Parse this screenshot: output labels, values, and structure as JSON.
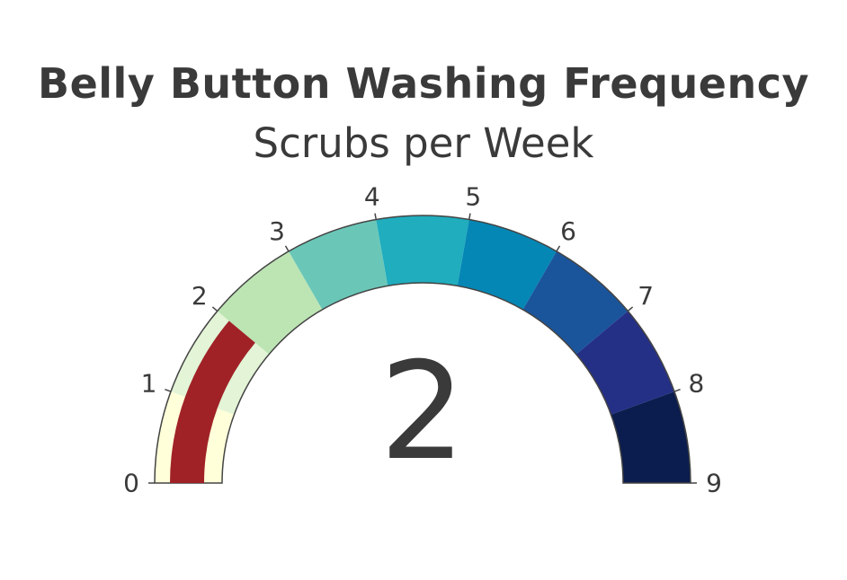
{
  "chart_data": {
    "type": "gauge",
    "title": "Belly Button Washing Frequency",
    "subtitle": "Scrubs per Week",
    "value": 2,
    "value_label": "2",
    "range": [
      0,
      9
    ],
    "ticks": [
      "0",
      "1",
      "2",
      "3",
      "4",
      "5",
      "6",
      "7",
      "8",
      "9"
    ],
    "steps": [
      {
        "range": [
          0,
          1
        ],
        "color": "#ffffd9"
      },
      {
        "range": [
          1,
          2
        ],
        "color": "#e3f4d7"
      },
      {
        "range": [
          2,
          3
        ],
        "color": "#bde5b4"
      },
      {
        "range": [
          3,
          4
        ],
        "color": "#6ac7b8"
      },
      {
        "range": [
          4,
          5
        ],
        "color": "#20adbe"
      },
      {
        "range": [
          5,
          6
        ],
        "color": "#0587b5"
      },
      {
        "range": [
          6,
          7
        ],
        "color": "#1a559b"
      },
      {
        "range": [
          7,
          8
        ],
        "color": "#242f86"
      },
      {
        "range": [
          8,
          9
        ],
        "color": "#0b1d4e"
      }
    ],
    "bar_color": "#a02227"
  }
}
